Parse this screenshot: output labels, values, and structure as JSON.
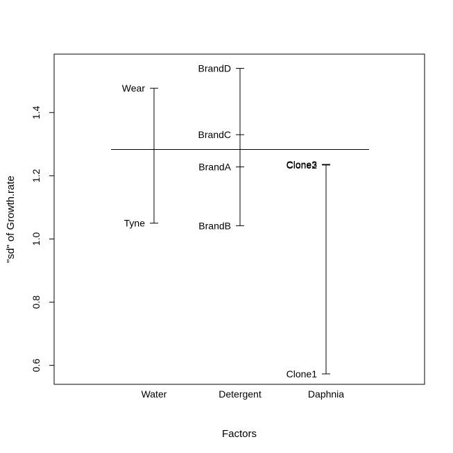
{
  "chart_data": {
    "type": "design-plot",
    "title": "",
    "xlabel": "Factors",
    "ylabel": "\"sd\" of Growth.rate",
    "ylim": [
      0.54,
      1.585
    ],
    "grand_value": 1.283,
    "y_ticks": [
      {
        "value": 0.6,
        "label": "0.6"
      },
      {
        "value": 0.8,
        "label": "0.8"
      },
      {
        "value": 1.0,
        "label": "1.0"
      },
      {
        "value": 1.2,
        "label": "1.2"
      },
      {
        "value": 1.4,
        "label": "1.4"
      }
    ],
    "factors": [
      {
        "name": "Water",
        "levels": [
          {
            "label": "Wear",
            "value": 1.477
          },
          {
            "label": "Tyne",
            "value": 1.05
          }
        ]
      },
      {
        "name": "Detergent",
        "levels": [
          {
            "label": "BrandD",
            "value": 1.54
          },
          {
            "label": "BrandC",
            "value": 1.33
          },
          {
            "label": "BrandA",
            "value": 1.228
          },
          {
            "label": "BrandB",
            "value": 1.042
          }
        ]
      },
      {
        "name": "Daphnia",
        "levels": [
          {
            "label": "Clone3",
            "value": 1.236
          },
          {
            "label": "Clone2",
            "value": 1.234
          },
          {
            "label": "Clone1",
            "value": 0.573
          }
        ]
      }
    ],
    "grid": false,
    "legend": "none"
  }
}
